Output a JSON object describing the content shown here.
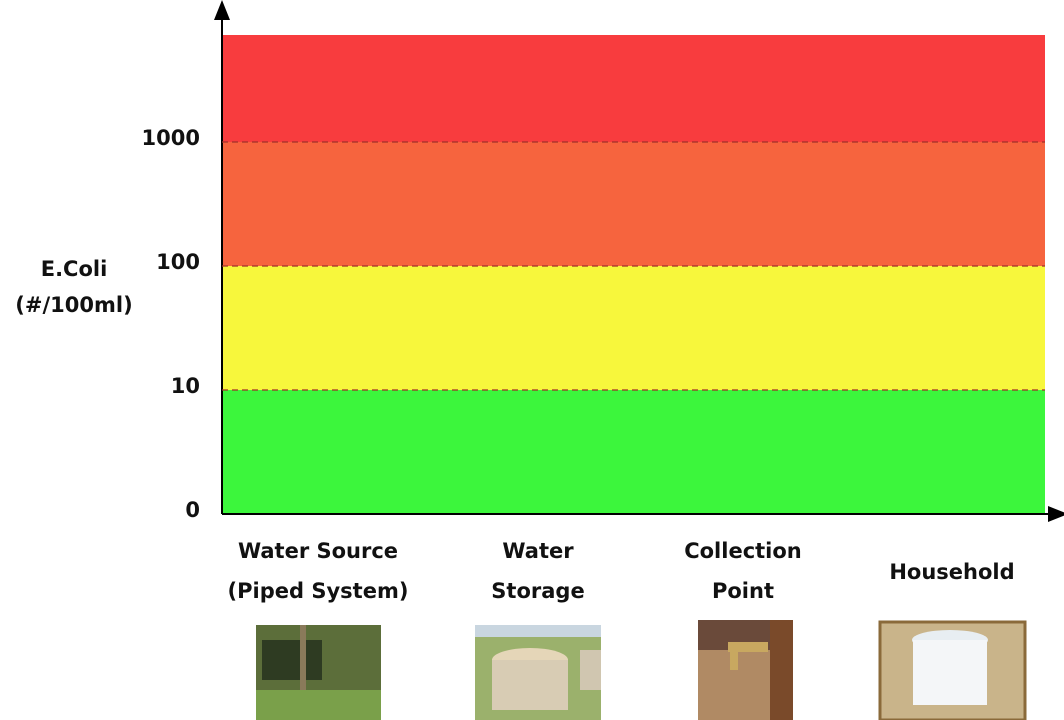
{
  "y_axis": {
    "label": [
      "E.Coli",
      "(#/100ml)"
    ],
    "ticks": [
      0,
      10,
      100,
      1000
    ]
  },
  "bands": [
    {
      "color": "#3cf63c"
    },
    {
      "color": "#f7f73c"
    },
    {
      "color": "#f6643e"
    },
    {
      "color": "#f83c3e"
    }
  ],
  "categories": [
    {
      "label": [
        "Water Source",
        "(Piped System)"
      ]
    },
    {
      "label": [
        "Water",
        "Storage"
      ]
    },
    {
      "label": [
        "Collection",
        "Point"
      ]
    },
    {
      "label": [
        "Household"
      ]
    }
  ]
}
